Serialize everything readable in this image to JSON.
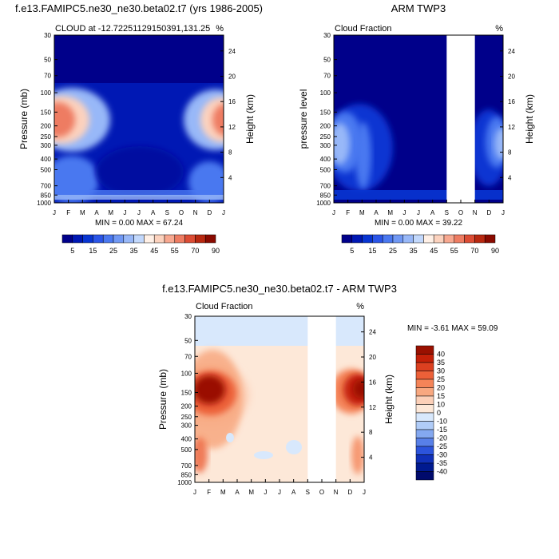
{
  "chart_data": [
    {
      "type": "heatmap",
      "title": "f.e13.FAMIPC5.ne30_ne30.beta02.t7 (yrs 1986-2005)",
      "subtitle_left": "CLOUD at -12.72251129150391,131.25",
      "subtitle_right": "%",
      "ylabel": "Pressure (mb)",
      "ylabel_right": "Height (km)",
      "minmax": "MIN =   0.00 MAX =  67.24",
      "months": [
        "J",
        "F",
        "M",
        "A",
        "M",
        "J",
        "J",
        "A",
        "S",
        "O",
        "N",
        "D",
        "J"
      ],
      "pressure_ticks": [
        "30",
        "50",
        "70",
        "100",
        "150",
        "200",
        "250",
        "300",
        "400",
        "500",
        "700",
        "850",
        "1000"
      ],
      "pressure_values": [
        30,
        50,
        70,
        100,
        150,
        200,
        250,
        300,
        400,
        500,
        700,
        850,
        1000
      ],
      "height_ticks": [
        "24",
        "20",
        "16",
        "12",
        "8",
        "4"
      ],
      "height_values": [
        24,
        20,
        16,
        12,
        8,
        4
      ],
      "colorbar_labels": [
        "5",
        "15",
        "25",
        "35",
        "45",
        "55",
        "70",
        "90"
      ],
      "max_value": 67.24,
      "missing_months": []
    },
    {
      "type": "heatmap",
      "title": "ARM TWP3",
      "subtitle_left": "Cloud Fraction",
      "subtitle_right": "%",
      "ylabel": "pressure level",
      "ylabel_right": "Height (km)",
      "minmax": "MIN =   0.00 MAX =  39.22",
      "months": [
        "J",
        "F",
        "M",
        "A",
        "M",
        "J",
        "J",
        "A",
        "S",
        "O",
        "N",
        "D",
        "J"
      ],
      "pressure_ticks": [
        "30",
        "50",
        "70",
        "100",
        "150",
        "200",
        "250",
        "300",
        "400",
        "500",
        "700",
        "850",
        "1000"
      ],
      "pressure_values": [
        30,
        50,
        70,
        100,
        150,
        200,
        250,
        300,
        400,
        500,
        700,
        850,
        1000
      ],
      "height_ticks": [
        "24",
        "20",
        "16",
        "12",
        "8",
        "4"
      ],
      "height_values": [
        24,
        20,
        16,
        12,
        8,
        4
      ],
      "colorbar_labels": [
        "5",
        "15",
        "25",
        "35",
        "45",
        "55",
        "70",
        "90"
      ],
      "max_value": 39.22,
      "missing_months": [
        "S",
        "O",
        "N"
      ]
    },
    {
      "type": "heatmap",
      "title": "f.e13.FAMIPC5.ne30_ne30.beta02.t7 - ARM TWP3",
      "subtitle_left": "Cloud Fraction",
      "subtitle_right": "%",
      "ylabel": "Pressure (mb)",
      "ylabel_right": "Height (km)",
      "minmax": "MIN =  -3.61 MAX =  59.09",
      "months": [
        "J",
        "F",
        "M",
        "A",
        "M",
        "J",
        "J",
        "A",
        "S",
        "O",
        "N",
        "D",
        "J"
      ],
      "pressure_ticks": [
        "30",
        "50",
        "70",
        "100",
        "150",
        "200",
        "250",
        "300",
        "400",
        "500",
        "700",
        "850",
        "1000"
      ],
      "pressure_values": [
        30,
        50,
        70,
        100,
        150,
        200,
        250,
        300,
        400,
        500,
        700,
        850,
        1000
      ],
      "height_ticks": [
        "24",
        "20",
        "16",
        "12",
        "8",
        "4"
      ],
      "height_values": [
        24,
        20,
        16,
        12,
        8,
        4
      ],
      "colorbar_labels": [
        "40",
        "35",
        "30",
        "25",
        "20",
        "15",
        "10",
        "0",
        "-10",
        "-15",
        "-20",
        "-25",
        "-30",
        "-35",
        "-40"
      ],
      "min_value": -3.61,
      "max_value": 59.09,
      "missing_months": [
        "S",
        "O",
        "N"
      ]
    }
  ],
  "palettes": {
    "seq": [
      "#00008a",
      "#0018b4",
      "#0835d2",
      "#2a55e8",
      "#4a78f0",
      "#7098f4",
      "#98b8f8",
      "#c2d8fc",
      "#fff0e6",
      "#fcd2be",
      "#f8a890",
      "#ee7c62",
      "#dc4c34",
      "#b82810",
      "#8a0a00"
    ],
    "diff": [
      "#9a1000",
      "#c42008",
      "#dc4020",
      "#ec6038",
      "#f48458",
      "#f8a880",
      "#fcd0b8",
      "#fde8d8",
      "#d8e8fc",
      "#b0ccf8",
      "#84a8f0",
      "#5880e8",
      "#2c54dc",
      "#1030b8",
      "#001a90",
      "#000a6c"
    ]
  }
}
